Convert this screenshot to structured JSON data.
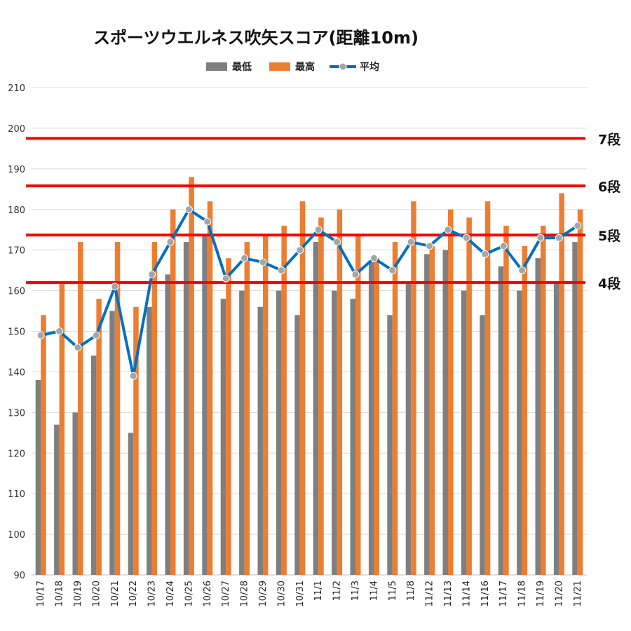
{
  "chart_data": {
    "type": "bar",
    "title": "スポーツウエルネス吹矢スコア(距離10m)",
    "categories": [
      "10/17",
      "10/18",
      "10/19",
      "10/20",
      "10/21",
      "10/22",
      "10/23",
      "10/24",
      "10/25",
      "10/26",
      "10/27",
      "10/28",
      "10/29",
      "10/30",
      "10/31",
      "11/1",
      "11/2",
      "11/3",
      "11/4",
      "11/5",
      "11/8",
      "11/12",
      "11/13",
      "11/14",
      "11/16",
      "11/17",
      "11/18",
      "11/19",
      "11/20",
      "11/21"
    ],
    "series": [
      {
        "name": "最低",
        "type": "bar",
        "color": "#7f7f7f",
        "values": [
          138,
          127,
          130,
          144,
          155,
          125,
          156,
          164,
          172,
          174,
          158,
          160,
          156,
          160,
          154,
          172,
          160,
          158,
          167,
          154,
          162,
          169,
          170,
          160,
          154,
          166,
          160,
          168,
          162,
          172
        ]
      },
      {
        "name": "最高",
        "type": "bar",
        "color": "#ed7d31",
        "values": [
          154,
          162,
          172,
          158,
          172,
          156,
          172,
          180,
          188,
          182,
          168,
          172,
          174,
          176,
          182,
          178,
          180,
          174,
          168,
          172,
          182,
          171,
          180,
          178,
          182,
          176,
          171,
          176,
          184,
          180
        ]
      },
      {
        "name": "平均",
        "type": "line",
        "color": "#0070c0",
        "marker_color": "#a5a5a5",
        "values": [
          149,
          150,
          146,
          149,
          161,
          139,
          164,
          172,
          180,
          177,
          163,
          168,
          167,
          165,
          170,
          175,
          172,
          164,
          168,
          165,
          172,
          171,
          175,
          173,
          169,
          171,
          165,
          173,
          173,
          176
        ]
      }
    ],
    "ylim": [
      90,
      210
    ],
    "yticks": [
      90,
      100,
      110,
      120,
      130,
      140,
      150,
      160,
      170,
      180,
      190,
      200,
      210
    ],
    "grid": true,
    "legend_position": "top-center",
    "reference_lines": [
      {
        "label": "7段",
        "value": 197.5,
        "color": "#ff0000"
      },
      {
        "label": "6段",
        "value": 185.8,
        "color": "#ff0000"
      },
      {
        "label": "5段",
        "value": 173.7,
        "color": "#ff0000"
      },
      {
        "label": "4段",
        "value": 162,
        "color": "#ff0000"
      }
    ]
  }
}
